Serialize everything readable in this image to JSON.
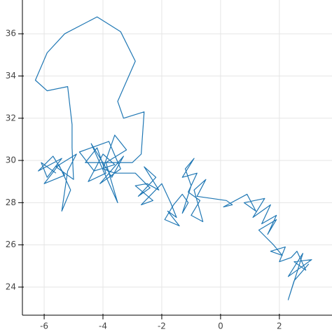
{
  "chart_data": {
    "type": "line",
    "x": [
      -5.6,
      -6.1,
      -5.9,
      -5.4,
      -6.2,
      -5.7,
      -5.3,
      -6.0,
      -5.5,
      -5.1,
      -5.4,
      -5.2,
      -4.9,
      -5.6,
      -5.0,
      -5.05,
      -5.05,
      -5.2,
      -5.9,
      -6.3,
      -5.9,
      -5.3,
      -4.2,
      -3.4,
      -2.9,
      -3.5,
      -3.3,
      -2.6,
      -2.7,
      -3.0,
      -4.6,
      -4.2,
      -3.9,
      -4.5,
      -4.0,
      -3.6,
      -4.3,
      -4.8,
      -3.8,
      -3.4,
      -4.1,
      -3.3,
      -3.7,
      -4.4,
      -3.5,
      -3.9,
      -3.2,
      -3.6,
      -4.0,
      -3.6,
      -2.9,
      -2.4,
      -2.8,
      -2.2,
      -2.6,
      -2.1,
      -2.5,
      -2.9,
      -2.3,
      -2.7,
      -2.0,
      -1.7,
      -1.5,
      -1.8,
      -1.4,
      -1.9,
      -1.6,
      -1.3,
      -1.1,
      -1.3,
      -1.0,
      -1.2,
      -0.9,
      -1.3,
      -0.8,
      -1.1,
      -0.7,
      -1.0,
      -0.6,
      -0.9,
      -0.5,
      -0.8,
      0.2,
      0.4,
      0.1,
      0.9,
      1.2,
      0.8,
      1.5,
      1.1,
      1.7,
      1.4,
      1.9,
      1.6,
      1.9,
      1.3,
      1.8,
      2.1,
      1.7,
      2.2,
      2.0,
      2.4,
      2.6,
      2.9,
      2.5,
      3.1,
      2.7,
      2.3,
      2.8,
      2.6,
      2.3,
      2.5,
      3.0
    ],
    "y": [
      29.4,
      29.9,
      29.2,
      30.1,
      29.5,
      30.2,
      29.3,
      28.9,
      29.8,
      28.6,
      27.6,
      29.5,
      30.3,
      29.7,
      29.1,
      30.6,
      31.7,
      33.5,
      33.3,
      33.8,
      35.1,
      36.0,
      36.8,
      36.1,
      34.7,
      32.8,
      32.0,
      32.3,
      30.3,
      29.9,
      29.9,
      30.6,
      29.4,
      29.0,
      30.3,
      29.8,
      29.5,
      30.4,
      30.9,
      29.6,
      28.9,
      30.2,
      29.2,
      30.8,
      28.0,
      29.9,
      30.5,
      31.2,
      29.6,
      29.4,
      29.4,
      28.7,
      28.3,
      29.2,
      29.7,
      28.6,
      28.9,
      28.8,
      28.1,
      27.9,
      28.9,
      28.0,
      27.3,
      27.6,
      26.9,
      27.2,
      27.9,
      28.4,
      28.0,
      27.5,
      28.8,
      29.6,
      30.1,
      29.2,
      29.4,
      28.5,
      28.1,
      27.4,
      27.1,
      28.6,
      29.1,
      28.3,
      28.1,
      27.9,
      27.8,
      28.4,
      27.6,
      28.0,
      28.2,
      27.3,
      27.9,
      27.0,
      27.4,
      26.5,
      27.2,
      26.7,
      26.0,
      25.5,
      25.7,
      25.9,
      25.2,
      25.4,
      25.7,
      24.8,
      25.2,
      25.3,
      24.9,
      24.5,
      25.6,
      24.7,
      23.4,
      24.3,
      25.1
    ],
    "color": "#1f77b4",
    "xlim": [
      -6.74,
      3.79
    ],
    "xticks": [
      -6,
      -4,
      -2,
      0,
      2
    ],
    "ylim": [
      22.67,
      37.6
    ],
    "yticks": [
      24,
      26,
      28,
      30,
      32,
      34,
      36
    ],
    "grid": true
  }
}
